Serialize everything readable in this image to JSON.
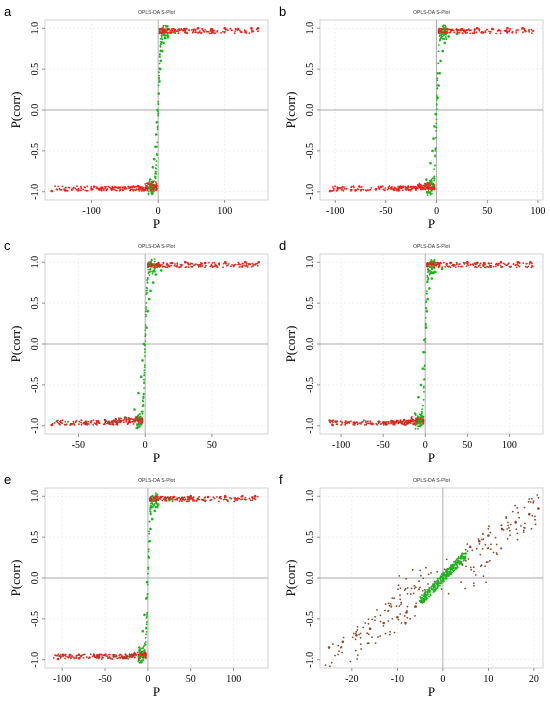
{
  "figure": {
    "colors": {
      "series_a": "#e8241c",
      "series_b": "#1db31d",
      "series_c": "#8b4a2b",
      "origin_line": "#a8a8a8",
      "grid": "#e6e6e6",
      "frame": "#c8c8c8"
    }
  },
  "chart_data": [
    {
      "panel": "a",
      "type": "scatter",
      "title": "OPLS-DA S-Plot",
      "xlabel": "P",
      "ylabel": "P(corr)",
      "xlim": [
        -170,
        165
      ],
      "ylim": [
        -1.1,
        1.1
      ],
      "xticks": [
        -100,
        0,
        100
      ],
      "xtick_labels": [
        "-100",
        "0",
        "100"
      ],
      "yticks": [
        1.0,
        0.5,
        0.0,
        -0.5,
        -1.0
      ],
      "ytick_labels": [
        "1.0",
        "0.5",
        "0.0",
        "-0.5",
        "-1.0"
      ],
      "grid": true,
      "legend": "none",
      "pattern": "sigmoid",
      "series": [
        {
          "color": "red",
          "values": [
            [
              -160,
              -0.99
            ],
            [
              -140,
              -0.98
            ],
            [
              -120,
              -0.98
            ],
            [
              -100,
              -0.97
            ],
            [
              -85,
              -0.96
            ],
            [
              -70,
              -0.97
            ],
            [
              -60,
              -0.95
            ],
            [
              -50,
              -0.96
            ],
            [
              -40,
              -0.94
            ],
            [
              -30,
              -0.93
            ],
            [
              -25,
              -0.95
            ],
            [
              -15,
              -0.9
            ],
            [
              -8,
              -0.88
            ],
            [
              8,
              0.97
            ],
            [
              15,
              0.99
            ],
            [
              25,
              0.98
            ],
            [
              40,
              0.99
            ],
            [
              60,
              1.0
            ],
            [
              80,
              0.99
            ],
            [
              100,
              1.0
            ],
            [
              120,
              0.99
            ],
            [
              140,
              1.0
            ],
            [
              150,
              1.0
            ]
          ]
        },
        {
          "color": "green",
          "values": [
            [
              -12,
              -0.85
            ],
            [
              -8,
              -0.7
            ],
            [
              -6,
              -0.6
            ],
            [
              -4,
              -0.45
            ],
            [
              -3,
              -0.3
            ],
            [
              -2,
              -0.15
            ],
            [
              -1,
              0.0
            ],
            [
              1,
              0.2
            ],
            [
              2,
              0.35
            ],
            [
              3,
              0.5
            ],
            [
              4,
              0.6
            ],
            [
              6,
              0.72
            ],
            [
              8,
              0.82
            ],
            [
              10,
              0.88
            ],
            [
              15,
              0.9
            ],
            [
              25,
              0.95
            ]
          ]
        }
      ]
    },
    {
      "panel": "b",
      "type": "scatter",
      "title": "OPLS-DA S-Plot",
      "xlabel": "P",
      "ylabel": "P(corr)",
      "xlim": [
        -115,
        105
      ],
      "ylim": [
        -1.1,
        1.1
      ],
      "xticks": [
        -100,
        -50,
        0,
        50,
        100
      ],
      "xtick_labels": [
        "-100",
        "-50",
        "0",
        "50",
        "100"
      ],
      "yticks": [
        1.0,
        0.5,
        0.0,
        -0.5,
        -1.0
      ],
      "ytick_labels": [
        "1.0",
        "0.5",
        "0.0",
        "-0.5",
        "-1.0"
      ],
      "grid": true,
      "legend": "none",
      "pattern": "sigmoid",
      "series": [
        {
          "color": "red",
          "values": [
            [
              -105,
              -0.99
            ],
            [
              -80,
              -0.98
            ],
            [
              -60,
              -0.97
            ],
            [
              -45,
              -0.96
            ],
            [
              -35,
              -0.95
            ],
            [
              -25,
              -0.94
            ],
            [
              -15,
              -0.93
            ],
            [
              -8,
              -0.9
            ],
            [
              8,
              0.96
            ],
            [
              15,
              0.98
            ],
            [
              25,
              0.99
            ],
            [
              40,
              1.0
            ],
            [
              55,
              0.99
            ],
            [
              70,
              1.0
            ],
            [
              85,
              1.0
            ]
          ]
        },
        {
          "color": "green",
          "values": [
            [
              -10,
              -0.85
            ],
            [
              -6,
              -0.65
            ],
            [
              -4,
              -0.5
            ],
            [
              -3,
              -0.35
            ],
            [
              -2,
              -0.2
            ],
            [
              -1,
              -0.05
            ],
            [
              1,
              0.15
            ],
            [
              2,
              0.3
            ],
            [
              3,
              0.45
            ],
            [
              4,
              0.6
            ],
            [
              6,
              0.72
            ],
            [
              8,
              0.82
            ],
            [
              12,
              0.9
            ],
            [
              20,
              0.93
            ]
          ]
        }
      ]
    },
    {
      "panel": "c",
      "type": "scatter",
      "title": "OPLS-DA S-Plot",
      "xlabel": "P",
      "ylabel": "P(corr)",
      "xlim": [
        -75,
        92
      ],
      "ylim": [
        -1.1,
        1.1
      ],
      "xticks": [
        -50,
        0,
        50
      ],
      "xtick_labels": [
        "-50",
        "0",
        "50"
      ],
      "yticks": [
        1.0,
        0.5,
        0.0,
        -0.5,
        -1.0
      ],
      "ytick_labels": [
        "1.0",
        "0.5",
        "0.0",
        "-0.5",
        "-1.0"
      ],
      "grid": true,
      "legend": "none",
      "pattern": "sigmoid",
      "series": [
        {
          "color": "red",
          "values": [
            [
              -70,
              -0.99
            ],
            [
              -55,
              -0.98
            ],
            [
              -45,
              -0.97
            ],
            [
              -35,
              -0.96
            ],
            [
              -25,
              -0.95
            ],
            [
              -18,
              -0.94
            ],
            [
              -12,
              -0.92
            ],
            [
              -6,
              -0.9
            ],
            [
              5,
              0.97
            ],
            [
              10,
              0.99
            ],
            [
              20,
              0.99
            ],
            [
              30,
              1.0
            ],
            [
              45,
              0.99
            ],
            [
              60,
              1.0
            ],
            [
              75,
              1.0
            ],
            [
              85,
              1.0
            ]
          ]
        },
        {
          "color": "green",
          "values": [
            [
              -8,
              -0.8
            ],
            [
              -5,
              -0.6
            ],
            [
              -3,
              -0.4
            ],
            [
              -2,
              -0.2
            ],
            [
              -1,
              0.0
            ],
            [
              1,
              0.2
            ],
            [
              2,
              0.4
            ],
            [
              3,
              0.55
            ],
            [
              4,
              0.65
            ],
            [
              6,
              0.75
            ],
            [
              8,
              0.85
            ],
            [
              12,
              0.9
            ]
          ]
        },
        {
          "color": "brown",
          "values": [
            [
              -30,
              -0.93
            ],
            [
              -22,
              -0.92
            ],
            [
              -15,
              -0.9
            ]
          ]
        }
      ]
    },
    {
      "panel": "d",
      "type": "scatter",
      "title": "OPLS-DA S-Plot",
      "xlabel": "P",
      "ylabel": "P(corr)",
      "xlim": [
        -125,
        140
      ],
      "ylim": [
        -1.1,
        1.1
      ],
      "xticks": [
        -100,
        -50,
        0,
        50,
        100
      ],
      "xtick_labels": [
        "-100",
        "-50",
        "0",
        "50",
        "100"
      ],
      "yticks": [
        1.0,
        0.5,
        0.0,
        -0.5,
        -1.0
      ],
      "ytick_labels": [
        "1.0",
        "0.5",
        "0.0",
        "-0.5",
        "-1.0"
      ],
      "grid": true,
      "legend": "none",
      "pattern": "sigmoid",
      "series": [
        {
          "color": "red",
          "values": [
            [
              -110,
              -0.99
            ],
            [
              -85,
              -0.98
            ],
            [
              -65,
              -0.97
            ],
            [
              -50,
              -0.96
            ],
            [
              -35,
              -0.96
            ],
            [
              -20,
              -0.94
            ],
            [
              -10,
              -0.92
            ],
            [
              8,
              0.97
            ],
            [
              15,
              0.99
            ],
            [
              30,
              0.99
            ],
            [
              50,
              1.0
            ],
            [
              70,
              0.99
            ],
            [
              90,
              1.0
            ],
            [
              110,
              1.0
            ],
            [
              125,
              1.0
            ]
          ]
        },
        {
          "color": "green",
          "values": [
            [
              -12,
              -0.85
            ],
            [
              -8,
              -0.65
            ],
            [
              -5,
              -0.5
            ],
            [
              -3,
              -0.3
            ],
            [
              -2,
              -0.1
            ],
            [
              -1,
              0.05
            ],
            [
              1,
              0.2
            ],
            [
              2,
              0.4
            ],
            [
              3,
              0.55
            ],
            [
              5,
              0.68
            ],
            [
              8,
              0.8
            ],
            [
              12,
              0.88
            ],
            [
              20,
              0.92
            ]
          ]
        },
        {
          "color": "brown",
          "values": [
            [
              -55,
              -0.95
            ],
            [
              -40,
              -0.94
            ],
            [
              -25,
              -0.93
            ]
          ]
        }
      ]
    },
    {
      "panel": "e",
      "type": "scatter",
      "title": "OPLS-DA S-Plot",
      "xlabel": "P",
      "ylabel": "P(corr)",
      "xlim": [
        -120,
        140
      ],
      "ylim": [
        -1.1,
        1.1
      ],
      "xticks": [
        -100,
        -50,
        0,
        50,
        100
      ],
      "xtick_labels": [
        "-100",
        "-50",
        "0",
        "50",
        "100"
      ],
      "yticks": [
        1.0,
        0.5,
        0.0,
        -0.5,
        -1.0
      ],
      "ytick_labels": [
        "1.0",
        "0.5",
        "0.0",
        "-0.5",
        "-1.0"
      ],
      "grid": true,
      "legend": "none",
      "pattern": "sigmoid",
      "series": [
        {
          "color": "red",
          "values": [
            [
              -105,
              -0.99
            ],
            [
              -80,
              -0.98
            ],
            [
              -60,
              -0.97
            ],
            [
              -45,
              -0.97
            ],
            [
              -30,
              -0.96
            ],
            [
              -18,
              -0.95
            ],
            [
              -8,
              -0.93
            ],
            [
              8,
              0.98
            ],
            [
              15,
              0.99
            ],
            [
              30,
              0.99
            ],
            [
              50,
              1.0
            ],
            [
              70,
              0.99
            ],
            [
              90,
              1.0
            ],
            [
              110,
              1.0
            ],
            [
              125,
              1.0
            ]
          ]
        },
        {
          "color": "green",
          "values": [
            [
              -10,
              -0.85
            ],
            [
              -6,
              -0.65
            ],
            [
              -4,
              -0.45
            ],
            [
              -2,
              -0.25
            ],
            [
              -1,
              -0.05
            ],
            [
              1,
              0.25
            ],
            [
              2,
              0.45
            ],
            [
              3,
              0.6
            ],
            [
              5,
              0.72
            ],
            [
              8,
              0.82
            ],
            [
              12,
              0.9
            ],
            [
              25,
              0.95
            ]
          ]
        },
        {
          "color": "brown",
          "values": [
            [
              -40,
              -0.96
            ],
            [
              -25,
              -0.95
            ],
            [
              25,
              0.97
            ],
            [
              40,
              0.98
            ]
          ]
        }
      ]
    },
    {
      "panel": "f",
      "type": "scatter",
      "title": "OPLS-DA S-Plot",
      "xlabel": "P",
      "ylabel": "P(corr)",
      "xlim": [
        -27,
        22
      ],
      "ylim": [
        -1.1,
        1.1
      ],
      "xticks": [
        -20,
        -10,
        0,
        10,
        20
      ],
      "xtick_labels": [
        "-20",
        "-10",
        "0",
        "10",
        "20"
      ],
      "yticks": [
        1.0,
        0.5,
        0.0,
        -0.5,
        -1.0
      ],
      "ytick_labels": [
        "1.0",
        "0.5",
        "0.0",
        "-0.5",
        "-1.0"
      ],
      "grid": true,
      "legend": "none",
      "pattern": "diagonal",
      "series": [
        {
          "color": "brown",
          "values": [
            [
              -25,
              -0.85
            ],
            [
              -22,
              -0.78
            ],
            [
              -19,
              -0.7
            ],
            [
              -16,
              -0.62
            ],
            [
              -13,
              -0.55
            ],
            [
              -10,
              -0.48
            ],
            [
              -8,
              -0.42
            ],
            [
              -6,
              -0.35
            ],
            [
              6,
              0.38
            ],
            [
              8,
              0.45
            ],
            [
              10,
              0.52
            ],
            [
              13,
              0.6
            ],
            [
              16,
              0.68
            ],
            [
              19,
              0.78
            ],
            [
              21,
              0.85
            ]
          ]
        },
        {
          "color": "green",
          "values": [
            [
              -5,
              -0.28
            ],
            [
              -4,
              -0.22
            ],
            [
              -3,
              -0.16
            ],
            [
              -2,
              -0.1
            ],
            [
              -1,
              -0.05
            ],
            [
              0,
              0.0
            ],
            [
              1,
              0.06
            ],
            [
              2,
              0.12
            ],
            [
              3,
              0.18
            ],
            [
              4,
              0.24
            ],
            [
              5,
              0.3
            ]
          ]
        }
      ]
    }
  ]
}
